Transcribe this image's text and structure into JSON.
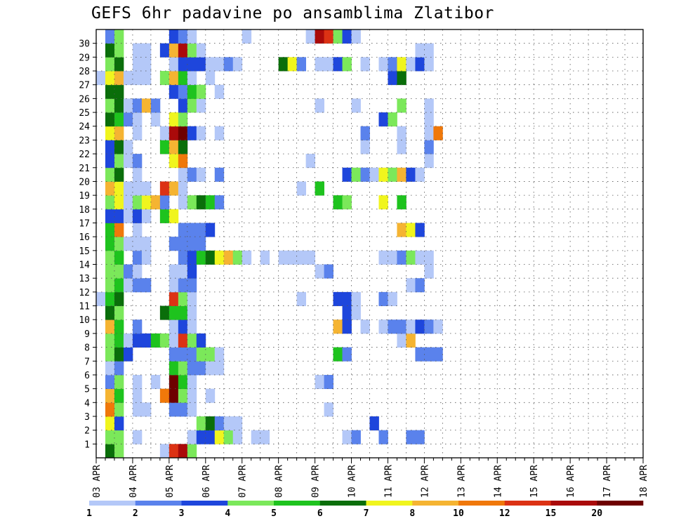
{
  "chart_data": {
    "type": "heatmap",
    "title": "GEFS 6hr padavine po ansamblima Zlatibor",
    "xlabel": "",
    "ylabel": "",
    "x_tick_labels": [
      "03 APR",
      "04 APR",
      "05 APR",
      "06 APR",
      "07 APR",
      "08 APR",
      "09 APR",
      "10 APR",
      "11 APR",
      "12 APR",
      "13 APR",
      "14 APR",
      "15 APR",
      "16 APR",
      "17 APR",
      "18 APR"
    ],
    "y_tick_labels": [
      "1",
      "2",
      "3",
      "4",
      "5",
      "6",
      "7",
      "8",
      "9",
      "10",
      "11",
      "12",
      "13",
      "14",
      "15",
      "16",
      "17",
      "18",
      "19",
      "20",
      "21",
      "22",
      "23",
      "24",
      "25",
      "26",
      "27",
      "28",
      "29",
      "30"
    ],
    "grid": true,
    "time_step_hours": 6,
    "members": 31,
    "legend_levels": [
      1,
      2,
      3,
      4,
      5,
      6,
      7,
      8,
      10,
      12,
      15,
      20
    ],
    "legend_colors": [
      "#b4c8f8",
      "#5a82ec",
      "#1e46dc",
      "#7be85a",
      "#1ec31e",
      "#0a6e0a",
      "#f0f51e",
      "#f5b432",
      "#f0780a",
      "#dc3214",
      "#aa0a0a",
      "#6e0000"
    ],
    "cells": {
      "30": [
        [
          1,
          2
        ],
        [
          2,
          4
        ],
        [
          8,
          3
        ],
        [
          9,
          2
        ],
        [
          10,
          1
        ],
        [
          16,
          1
        ],
        [
          23,
          1
        ],
        [
          24,
          11
        ],
        [
          25,
          10
        ],
        [
          26,
          4
        ],
        [
          27,
          3
        ],
        [
          28,
          1
        ]
      ],
      "29": [
        [
          1,
          6
        ],
        [
          2,
          4
        ],
        [
          4,
          1
        ],
        [
          5,
          1
        ],
        [
          7,
          3
        ],
        [
          8,
          8
        ],
        [
          9,
          11
        ],
        [
          10,
          4
        ],
        [
          11,
          1
        ],
        [
          35,
          1
        ],
        [
          36,
          1
        ]
      ],
      "28": [
        [
          1,
          4
        ],
        [
          2,
          6
        ],
        [
          4,
          1
        ],
        [
          5,
          1
        ],
        [
          8,
          1
        ],
        [
          9,
          3
        ],
        [
          10,
          3
        ],
        [
          11,
          3
        ],
        [
          12,
          1
        ],
        [
          13,
          1
        ],
        [
          14,
          2
        ],
        [
          15,
          1
        ],
        [
          20,
          6
        ],
        [
          21,
          7
        ],
        [
          22,
          2
        ],
        [
          24,
          1
        ],
        [
          25,
          1
        ],
        [
          26,
          3
        ],
        [
          27,
          4
        ],
        [
          29,
          1
        ],
        [
          31,
          1
        ],
        [
          32,
          2
        ],
        [
          33,
          7
        ],
        [
          34,
          1
        ],
        [
          35,
          3
        ],
        [
          36,
          1
        ]
      ],
      "27": [
        [
          0,
          1
        ],
        [
          1,
          7
        ],
        [
          2,
          8
        ],
        [
          3,
          1
        ],
        [
          4,
          1
        ],
        [
          5,
          1
        ],
        [
          7,
          4
        ],
        [
          8,
          8
        ],
        [
          9,
          5
        ],
        [
          10,
          1
        ],
        [
          12,
          1
        ],
        [
          32,
          3
        ],
        [
          33,
          6
        ]
      ],
      "26": [
        [
          1,
          6
        ],
        [
          2,
          6
        ],
        [
          8,
          3
        ],
        [
          9,
          2
        ],
        [
          10,
          5
        ],
        [
          11,
          4
        ],
        [
          13,
          1
        ]
      ],
      "25": [
        [
          1,
          4
        ],
        [
          2,
          6
        ],
        [
          3,
          1
        ],
        [
          4,
          2
        ],
        [
          5,
          8
        ],
        [
          6,
          2
        ],
        [
          9,
          3
        ],
        [
          10,
          4
        ],
        [
          11,
          1
        ],
        [
          24,
          1
        ],
        [
          28,
          1
        ],
        [
          33,
          4
        ],
        [
          36,
          1
        ]
      ],
      "24": [
        [
          1,
          6
        ],
        [
          2,
          5
        ],
        [
          3,
          2
        ],
        [
          4,
          1
        ],
        [
          6,
          1
        ],
        [
          8,
          7
        ],
        [
          9,
          4
        ],
        [
          31,
          3
        ],
        [
          32,
          4
        ],
        [
          36,
          1
        ]
      ],
      "23": [
        [
          1,
          7
        ],
        [
          2,
          8
        ],
        [
          4,
          1
        ],
        [
          7,
          1
        ],
        [
          8,
          11
        ],
        [
          9,
          12
        ],
        [
          10,
          3
        ],
        [
          11,
          1
        ],
        [
          13,
          1
        ],
        [
          29,
          2
        ],
        [
          33,
          1
        ],
        [
          36,
          1
        ],
        [
          37,
          9
        ]
      ],
      "22": [
        [
          1,
          3
        ],
        [
          2,
          6
        ],
        [
          3,
          1
        ],
        [
          7,
          5
        ],
        [
          8,
          8
        ],
        [
          9,
          6
        ],
        [
          29,
          1
        ],
        [
          33,
          1
        ],
        [
          36,
          2
        ]
      ],
      "21": [
        [
          1,
          3
        ],
        [
          2,
          4
        ],
        [
          3,
          1
        ],
        [
          4,
          2
        ],
        [
          8,
          7
        ],
        [
          9,
          9
        ],
        [
          23,
          1
        ],
        [
          36,
          1
        ]
      ],
      "20": [
        [
          1,
          4
        ],
        [
          2,
          6
        ],
        [
          4,
          1
        ],
        [
          9,
          1
        ],
        [
          10,
          2
        ],
        [
          11,
          1
        ],
        [
          13,
          2
        ],
        [
          27,
          3
        ],
        [
          28,
          4
        ],
        [
          29,
          2
        ],
        [
          30,
          1
        ],
        [
          31,
          7
        ],
        [
          32,
          4
        ],
        [
          33,
          8
        ],
        [
          34,
          3
        ],
        [
          35,
          1
        ]
      ],
      "19": [
        [
          1,
          8
        ],
        [
          2,
          7
        ],
        [
          3,
          1
        ],
        [
          4,
          1
        ],
        [
          5,
          1
        ],
        [
          7,
          10
        ],
        [
          8,
          8
        ],
        [
          9,
          1
        ],
        [
          22,
          1
        ],
        [
          24,
          5
        ]
      ],
      "18": [
        [
          1,
          4
        ],
        [
          2,
          7
        ],
        [
          3,
          1
        ],
        [
          4,
          4
        ],
        [
          5,
          7
        ],
        [
          6,
          8
        ],
        [
          7,
          2
        ],
        [
          9,
          1
        ],
        [
          10,
          4
        ],
        [
          11,
          6
        ],
        [
          12,
          5
        ],
        [
          13,
          2
        ],
        [
          26,
          5
        ],
        [
          27,
          4
        ],
        [
          31,
          7
        ],
        [
          33,
          5
        ]
      ],
      "17": [
        [
          1,
          3
        ],
        [
          2,
          3
        ],
        [
          3,
          1
        ],
        [
          4,
          3
        ],
        [
          5,
          1
        ],
        [
          7,
          5
        ],
        [
          8,
          7
        ]
      ],
      "16": [
        [
          1,
          5
        ],
        [
          2,
          9
        ],
        [
          4,
          1
        ],
        [
          9,
          2
        ],
        [
          10,
          2
        ],
        [
          11,
          2
        ],
        [
          12,
          3
        ],
        [
          33,
          8
        ],
        [
          34,
          7
        ],
        [
          35,
          3
        ]
      ],
      "15": [
        [
          1,
          5
        ],
        [
          2,
          4
        ],
        [
          3,
          1
        ],
        [
          4,
          1
        ],
        [
          5,
          1
        ],
        [
          8,
          2
        ],
        [
          9,
          2
        ],
        [
          10,
          2
        ],
        [
          11,
          2
        ]
      ],
      "14": [
        [
          1,
          4
        ],
        [
          2,
          5
        ],
        [
          4,
          2
        ],
        [
          5,
          1
        ],
        [
          9,
          2
        ],
        [
          10,
          3
        ],
        [
          11,
          5
        ],
        [
          12,
          6
        ],
        [
          13,
          7
        ],
        [
          14,
          8
        ],
        [
          15,
          4
        ],
        [
          16,
          1
        ],
        [
          18,
          1
        ],
        [
          20,
          1
        ],
        [
          21,
          1
        ],
        [
          22,
          1
        ],
        [
          23,
          1
        ],
        [
          31,
          1
        ],
        [
          32,
          1
        ],
        [
          33,
          2
        ],
        [
          34,
          4
        ],
        [
          35,
          1
        ],
        [
          36,
          1
        ]
      ],
      "13": [
        [
          1,
          4
        ],
        [
          2,
          4
        ],
        [
          3,
          2
        ],
        [
          4,
          1
        ],
        [
          8,
          1
        ],
        [
          9,
          1
        ],
        [
          10,
          3
        ],
        [
          24,
          1
        ],
        [
          25,
          2
        ],
        [
          36,
          1
        ]
      ],
      "12": [
        [
          1,
          4
        ],
        [
          2,
          5
        ],
        [
          3,
          1
        ],
        [
          4,
          2
        ],
        [
          5,
          2
        ],
        [
          8,
          1
        ],
        [
          9,
          2
        ],
        [
          10,
          2
        ],
        [
          34,
          1
        ],
        [
          35,
          2
        ]
      ],
      "11": [
        [
          0,
          1
        ],
        [
          1,
          5
        ],
        [
          2,
          6
        ],
        [
          8,
          10
        ],
        [
          9,
          4
        ],
        [
          10,
          1
        ],
        [
          22,
          1
        ],
        [
          26,
          3
        ],
        [
          27,
          3
        ],
        [
          28,
          1
        ],
        [
          31,
          2
        ],
        [
          32,
          1
        ]
      ],
      "10": [
        [
          1,
          6
        ],
        [
          2,
          4
        ],
        [
          7,
          6
        ],
        [
          8,
          5
        ],
        [
          9,
          5
        ],
        [
          10,
          1
        ],
        [
          27,
          3
        ],
        [
          28,
          1
        ]
      ],
      "9": [
        [
          1,
          8
        ],
        [
          2,
          5
        ],
        [
          4,
          2
        ],
        [
          8,
          1
        ],
        [
          9,
          3
        ],
        [
          10,
          1
        ],
        [
          26,
          8
        ],
        [
          27,
          3
        ],
        [
          29,
          1
        ],
        [
          31,
          1
        ],
        [
          32,
          2
        ],
        [
          33,
          2
        ],
        [
          34,
          1
        ],
        [
          35,
          3
        ],
        [
          36,
          2
        ],
        [
          37,
          1
        ]
      ],
      "8": [
        [
          1,
          4
        ],
        [
          2,
          5
        ],
        [
          3,
          1
        ],
        [
          4,
          3
        ],
        [
          5,
          3
        ],
        [
          6,
          5
        ],
        [
          7,
          4
        ],
        [
          8,
          1
        ],
        [
          9,
          10
        ],
        [
          10,
          4
        ],
        [
          11,
          3
        ],
        [
          33,
          1
        ],
        [
          34,
          8
        ]
      ],
      "7": [
        [
          1,
          4
        ],
        [
          2,
          6
        ],
        [
          3,
          3
        ],
        [
          8,
          2
        ],
        [
          9,
          2
        ],
        [
          10,
          2
        ],
        [
          11,
          4
        ],
        [
          12,
          4
        ],
        [
          13,
          1
        ],
        [
          26,
          5
        ],
        [
          27,
          2
        ],
        [
          35,
          2
        ],
        [
          36,
          2
        ],
        [
          37,
          2
        ]
      ],
      "6": [
        [
          1,
          1
        ],
        [
          2,
          2
        ],
        [
          8,
          5
        ],
        [
          9,
          4
        ],
        [
          10,
          2
        ],
        [
          11,
          2
        ],
        [
          12,
          1
        ],
        [
          13,
          1
        ]
      ],
      "5": [
        [
          1,
          2
        ],
        [
          2,
          4
        ],
        [
          4,
          1
        ],
        [
          6,
          1
        ],
        [
          8,
          12
        ],
        [
          9,
          5
        ],
        [
          10,
          1
        ],
        [
          24,
          1
        ],
        [
          25,
          2
        ]
      ],
      "4": [
        [
          1,
          8
        ],
        [
          2,
          5
        ],
        [
          4,
          1
        ],
        [
          7,
          9
        ],
        [
          8,
          12
        ],
        [
          9,
          4
        ],
        [
          10,
          1
        ],
        [
          12,
          1
        ]
      ],
      "3": [
        [
          1,
          9
        ],
        [
          2,
          4
        ],
        [
          4,
          1
        ],
        [
          5,
          1
        ],
        [
          8,
          2
        ],
        [
          9,
          2
        ],
        [
          10,
          1
        ],
        [
          25,
          1
        ]
      ],
      "2": [
        [
          1,
          7
        ],
        [
          2,
          3
        ],
        [
          11,
          4
        ],
        [
          12,
          6
        ],
        [
          13,
          2
        ],
        [
          14,
          1
        ],
        [
          15,
          1
        ],
        [
          30,
          3
        ]
      ],
      "1": [
        [
          1,
          4
        ],
        [
          2,
          4
        ],
        [
          4,
          1
        ],
        [
          10,
          1
        ],
        [
          11,
          3
        ],
        [
          12,
          3
        ],
        [
          13,
          7
        ],
        [
          14,
          4
        ],
        [
          15,
          1
        ],
        [
          17,
          1
        ],
        [
          18,
          1
        ],
        [
          27,
          1
        ],
        [
          28,
          2
        ],
        [
          31,
          2
        ],
        [
          34,
          2
        ],
        [
          35,
          2
        ]
      ],
      "0": [
        [
          1,
          6
        ],
        [
          2,
          4
        ],
        [
          7,
          1
        ],
        [
          8,
          10
        ],
        [
          9,
          11
        ],
        [
          10,
          4
        ]
      ]
    }
  }
}
